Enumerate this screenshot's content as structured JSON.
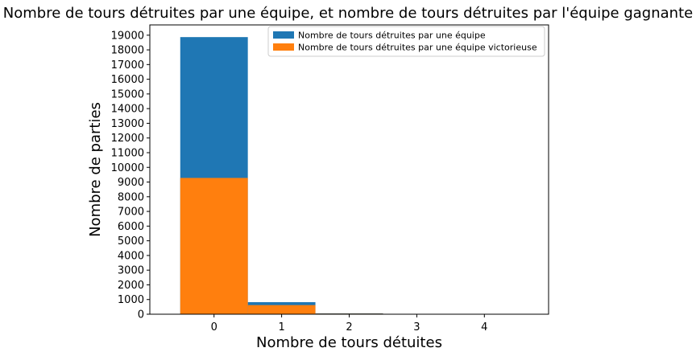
{
  "chart_data": {
    "type": "bar",
    "title": "Nombre de tours détruites par une équipe, et nombre de tours détruites par l'équipe gagnante",
    "xlabel": "Nombre de tours détuites",
    "ylabel": "Nombre de parties",
    "categories": [
      "0",
      "1",
      "2",
      "3",
      "4"
    ],
    "x": [
      0,
      1,
      2,
      3,
      4
    ],
    "xlim": [
      -0.95,
      4.95
    ],
    "ylim": [
      0,
      19700
    ],
    "yticks": [
      0,
      1000,
      2000,
      3000,
      4000,
      5000,
      6000,
      7000,
      8000,
      9000,
      10000,
      11000,
      12000,
      13000,
      14000,
      15000,
      16000,
      17000,
      18000,
      19000
    ],
    "grid": false,
    "legend_position": "top-right",
    "series": [
      {
        "name": "Nombre de tours détruites par une équipe",
        "color": "#1f77b4",
        "values": [
          18870,
          820,
          60,
          3,
          1
        ]
      },
      {
        "name": "Nombre de tours détruites par une équipe victorieuse",
        "color": "#ff7f0e",
        "values": [
          9280,
          620,
          40,
          2,
          0
        ]
      }
    ]
  }
}
